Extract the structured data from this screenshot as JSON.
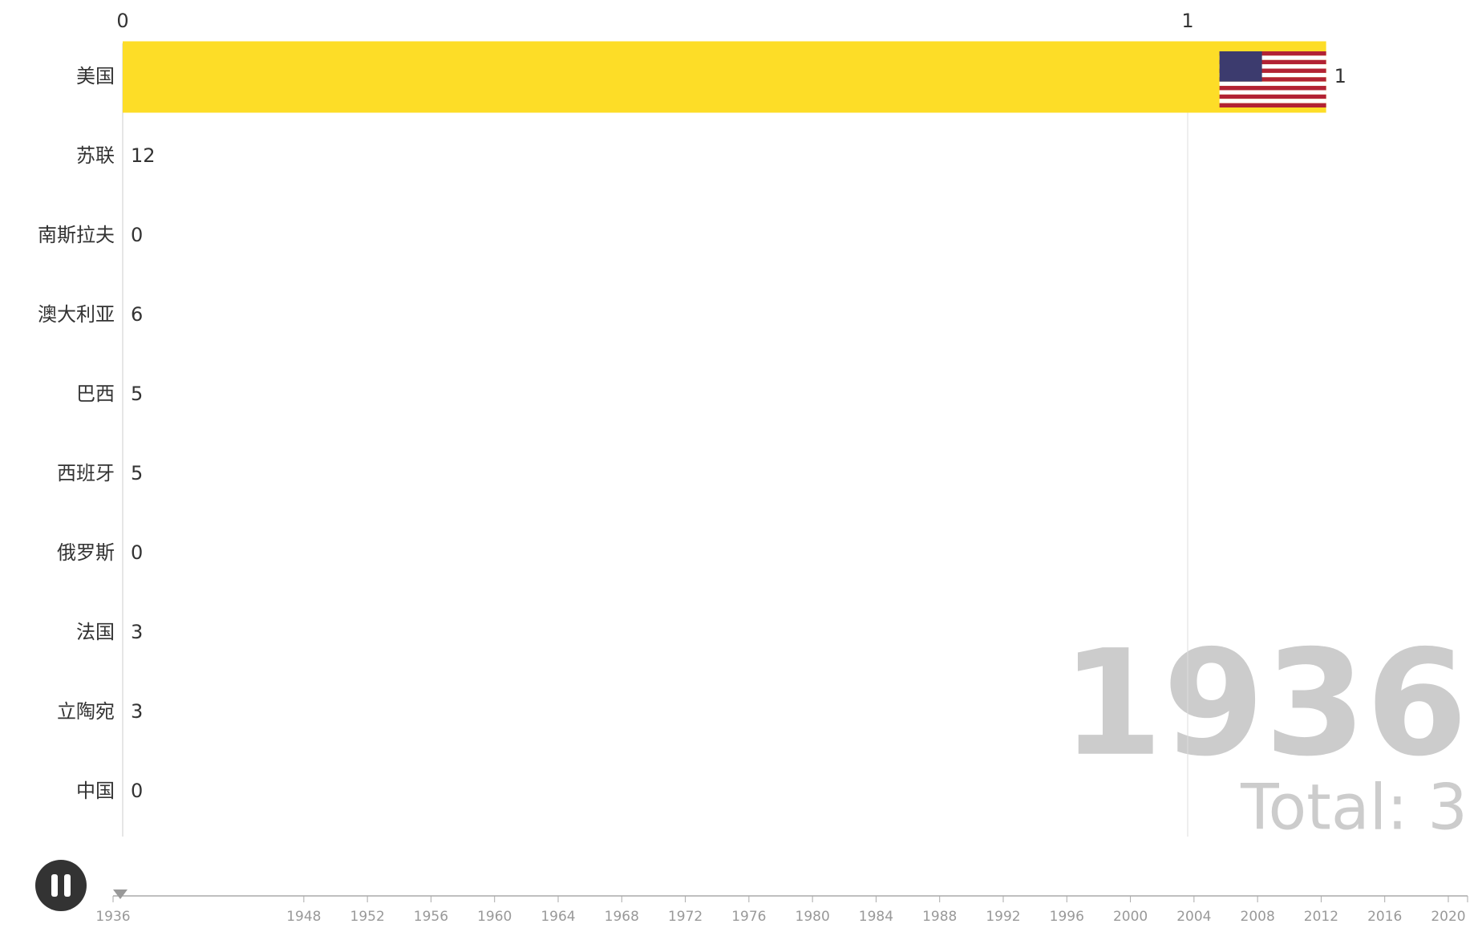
{
  "axis": {
    "ticks": [
      0,
      1
    ]
  },
  "rows": [
    {
      "name": "美国",
      "value": 1,
      "bar": 1.13
    },
    {
      "name": "苏联",
      "value": 12,
      "bar": 0
    },
    {
      "name": "南斯拉夫",
      "value": 0,
      "bar": 0
    },
    {
      "name": "澳大利亚",
      "value": 6,
      "bar": 0
    },
    {
      "name": "巴西",
      "value": 5,
      "bar": 0
    },
    {
      "name": "西班牙",
      "value": 5,
      "bar": 0
    },
    {
      "name": "俄罗斯",
      "value": 0,
      "bar": 0
    },
    {
      "name": "法国",
      "value": 3,
      "bar": 0
    },
    {
      "name": "立陶宛",
      "value": 3,
      "bar": 0
    },
    {
      "name": "中国",
      "value": 0,
      "bar": 0
    }
  ],
  "bar_color": "#fddd27",
  "year": "1936",
  "total": "Total: 3",
  "timeline": {
    "years": [
      1936,
      1948,
      1952,
      1956,
      1960,
      1964,
      1968,
      1972,
      1976,
      1980,
      1984,
      1988,
      1992,
      1996,
      2000,
      2004,
      2008,
      2012,
      2016,
      2020
    ]
  }
}
